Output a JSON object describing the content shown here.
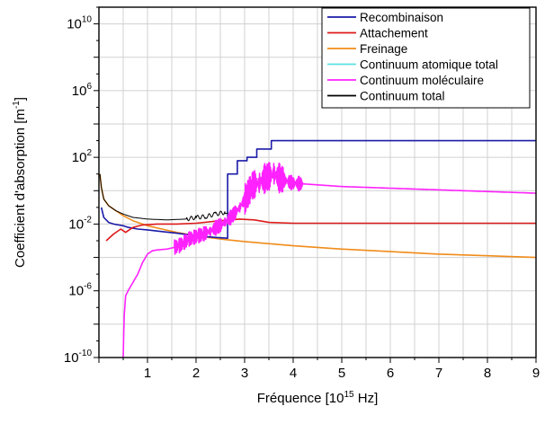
{
  "chart_data": {
    "type": "line",
    "xlabel": "Fréquence [10",
    "xlabel_exp": "15",
    "xlabel_unit": " Hz]",
    "ylabel": "Coefficient d'absorption [m",
    "ylabel_exp": "-1",
    "ylabel_close": "]",
    "xlim": [
      0,
      9
    ],
    "ylim_log10": [
      -10,
      11
    ],
    "y_scale": "log",
    "grid": true,
    "legend_position": "top-right",
    "x_ticks": [
      {
        "value": 1,
        "label": "1"
      },
      {
        "value": 2,
        "label": "2"
      },
      {
        "value": 3,
        "label": "3"
      },
      {
        "value": 4,
        "label": "4"
      },
      {
        "value": 5,
        "label": "5"
      },
      {
        "value": 6,
        "label": "6"
      },
      {
        "value": 7,
        "label": "7"
      },
      {
        "value": 8,
        "label": "8"
      },
      {
        "value": 9,
        "label": "9"
      }
    ],
    "y_ticks": [
      {
        "exp": -10,
        "base": "10",
        "sup": "-10"
      },
      {
        "exp": -6,
        "base": "10",
        "sup": "-6"
      },
      {
        "exp": -2,
        "base": "10",
        "sup": "-2"
      },
      {
        "exp": 2,
        "base": "10",
        "sup": "2"
      },
      {
        "exp": 6,
        "base": "10",
        "sup": "6"
      },
      {
        "exp": 10,
        "base": "10",
        "sup": "10"
      }
    ],
    "series": [
      {
        "name": "Recombinaison",
        "color": "#1a1aa8",
        "points": [
          [
            0.05,
            -1.0
          ],
          [
            0.1,
            -1.6
          ],
          [
            0.2,
            -1.9
          ],
          [
            0.3,
            -2.0
          ],
          [
            0.4,
            -2.05
          ],
          [
            0.5,
            -2.1
          ],
          [
            0.6,
            -2.2
          ],
          [
            0.8,
            -2.3
          ],
          [
            1.0,
            -2.35
          ],
          [
            1.3,
            -2.45
          ],
          [
            1.6,
            -2.55
          ],
          [
            2.0,
            -2.7
          ],
          [
            2.4,
            -2.8
          ],
          [
            2.65,
            -2.85
          ],
          [
            2.65,
            1.0
          ],
          [
            2.85,
            1.0
          ],
          [
            2.85,
            1.8
          ],
          [
            3.05,
            1.8
          ],
          [
            3.05,
            2.0
          ],
          [
            3.25,
            2.0
          ],
          [
            3.25,
            2.5
          ],
          [
            3.55,
            2.5
          ],
          [
            3.55,
            3.0
          ],
          [
            9.0,
            3.0
          ]
        ]
      },
      {
        "name": "Attachement",
        "color": "#dd1a1a",
        "points": [
          [
            0.15,
            -3.0
          ],
          [
            0.3,
            -2.6
          ],
          [
            0.45,
            -2.3
          ],
          [
            0.55,
            -2.5
          ],
          [
            0.7,
            -2.2
          ],
          [
            0.9,
            -2.05
          ],
          [
            1.2,
            -2.0
          ],
          [
            1.6,
            -2.0
          ],
          [
            2.0,
            -1.95
          ],
          [
            2.5,
            -1.8
          ],
          [
            2.9,
            -1.7
          ],
          [
            3.2,
            -1.75
          ],
          [
            3.5,
            -1.9
          ],
          [
            4.0,
            -1.95
          ],
          [
            6.0,
            -1.95
          ],
          [
            9.0,
            -1.95
          ]
        ]
      },
      {
        "name": "Freinage",
        "color": "#f08c1a",
        "points": [
          [
            0.02,
            1.0
          ],
          [
            0.05,
            0.2
          ],
          [
            0.1,
            -0.5
          ],
          [
            0.2,
            -0.9
          ],
          [
            0.35,
            -1.2
          ],
          [
            0.5,
            -1.5
          ],
          [
            0.7,
            -1.8
          ],
          [
            1.0,
            -2.1
          ],
          [
            1.3,
            -2.3
          ],
          [
            1.6,
            -2.5
          ],
          [
            2.0,
            -2.7
          ],
          [
            2.5,
            -2.9
          ],
          [
            3.0,
            -3.05
          ],
          [
            4.0,
            -3.3
          ],
          [
            5.0,
            -3.5
          ],
          [
            6.0,
            -3.65
          ],
          [
            7.0,
            -3.8
          ],
          [
            8.0,
            -3.9
          ],
          [
            9.0,
            -4.0
          ]
        ]
      },
      {
        "name": "Continuum atomique total",
        "color": "#5de0e0",
        "points": []
      },
      {
        "name": "Continuum moléculaire",
        "color": "#ff22ff",
        "points": [
          [
            0.5,
            -10.0
          ],
          [
            0.52,
            -7.5
          ],
          [
            0.55,
            -6.3
          ],
          [
            0.6,
            -6.0
          ],
          [
            0.7,
            -5.5
          ],
          [
            0.8,
            -5.0
          ],
          [
            0.9,
            -4.3
          ],
          [
            1.0,
            -3.8
          ],
          [
            1.1,
            -3.6
          ],
          [
            1.2,
            -3.55
          ],
          [
            1.4,
            -3.5
          ],
          [
            1.55,
            -3.4
          ],
          [
            1.65,
            -3.3
          ],
          [
            1.75,
            -3.1
          ],
          [
            1.85,
            -2.9
          ],
          [
            1.95,
            -2.8
          ],
          [
            2.05,
            -2.7
          ],
          [
            2.15,
            -2.6
          ],
          [
            2.3,
            -2.4
          ],
          [
            2.45,
            -2.15
          ],
          [
            2.6,
            -1.9
          ],
          [
            2.75,
            -1.5
          ],
          [
            2.9,
            -1.0
          ],
          [
            3.05,
            -0.3
          ],
          [
            3.15,
            0.3
          ],
          [
            3.3,
            0.5
          ],
          [
            3.45,
            0.8
          ],
          [
            3.6,
            1.0
          ],
          [
            3.75,
            0.7
          ],
          [
            4.0,
            0.45
          ],
          [
            4.5,
            0.35
          ],
          [
            5.0,
            0.25
          ],
          [
            6.0,
            0.15
          ],
          [
            7.0,
            0.05
          ],
          [
            8.0,
            -0.05
          ],
          [
            9.0,
            -0.15
          ]
        ]
      },
      {
        "name": "Continuum total",
        "color": "#000000",
        "points": [
          [
            0.02,
            1.0
          ],
          [
            0.05,
            0.2
          ],
          [
            0.1,
            -0.5
          ],
          [
            0.2,
            -0.9
          ],
          [
            0.35,
            -1.2
          ],
          [
            0.5,
            -1.4
          ],
          [
            0.7,
            -1.6
          ],
          [
            1.0,
            -1.7
          ],
          [
            1.4,
            -1.75
          ],
          [
            1.8,
            -1.7
          ],
          [
            2.0,
            -1.6
          ],
          [
            2.2,
            -1.55
          ],
          [
            2.4,
            -1.4
          ],
          [
            2.6,
            -1.3
          ],
          [
            2.65,
            -1.3
          ]
        ]
      }
    ]
  }
}
